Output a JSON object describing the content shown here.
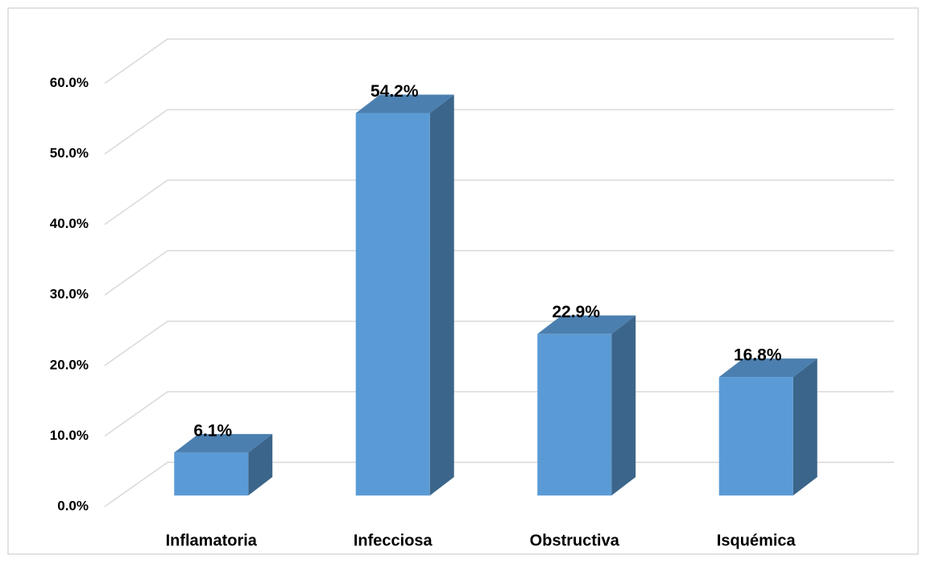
{
  "chart_data": {
    "type": "bar3d",
    "categories": [
      "Inflamatoria",
      "Infecciosa",
      "Obstructiva",
      "Isquémica"
    ],
    "values": [
      6.1,
      54.2,
      22.9,
      16.8
    ],
    "value_labels": [
      "6.1%",
      "54.2%",
      "22.9%",
      "16.8%"
    ],
    "color": "#5b9bd5",
    "ylim": [
      0,
      60
    ],
    "yticks": [
      {
        "value": 0,
        "label": "0.0%"
      },
      {
        "value": 10,
        "label": "10.0%"
      },
      {
        "value": 20,
        "label": "20.0%"
      },
      {
        "value": 30,
        "label": "30.0%"
      },
      {
        "value": 40,
        "label": "40.0%"
      },
      {
        "value": 50,
        "label": "50.0%"
      },
      {
        "value": 60,
        "label": "60.0%"
      }
    ],
    "grid": true
  }
}
